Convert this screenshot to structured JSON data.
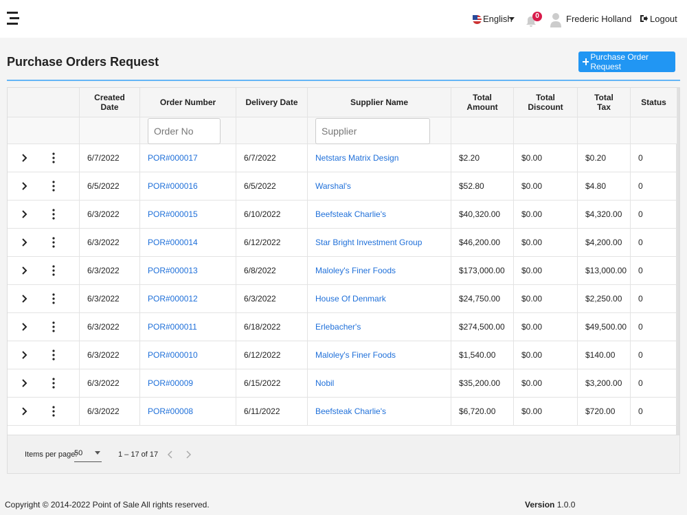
{
  "header": {
    "language": "English",
    "notification_count": 0,
    "user": "Frederic Holland",
    "logout": "Logout"
  },
  "page": {
    "title": "Purchase Orders Request",
    "button": "Purchase Order Request"
  },
  "table": {
    "columns": [
      "Created Date",
      "Order Number",
      "Delivery Date",
      "Supplier Name",
      "Total Amount",
      "Total Discount",
      "Total Tax",
      "Status"
    ],
    "filters": [
      "Order No",
      "Supplier"
    ],
    "rows": [
      [
        "6/7/2022",
        "POR#000017",
        "6/7/2022",
        "Netstars Matrix Design",
        "$2.20",
        "$0.00",
        "$0.20",
        0
      ],
      [
        "6/5/2022",
        "POR#000016",
        "6/5/2022",
        "Warshal's",
        "$52.80",
        "$0.00",
        "$4.80",
        0
      ],
      [
        "6/3/2022",
        "POR#000015",
        "6/10/2022",
        "Beefsteak Charlie's",
        "$40,320.00",
        "$0.00",
        "$4,320.00",
        0
      ],
      [
        "6/3/2022",
        "POR#000014",
        "6/12/2022",
        "Star Bright Investment Group",
        "$46,200.00",
        "$0.00",
        "$4,200.00",
        0
      ],
      [
        "6/3/2022",
        "POR#000013",
        "6/8/2022",
        "Maloley's Finer Foods",
        "$173,000.00",
        "$0.00",
        "$13,000.00",
        0
      ],
      [
        "6/3/2022",
        "POR#000012",
        "6/3/2022",
        "House Of Denmark",
        "$24,750.00",
        "$0.00",
        "$2,250.00",
        0
      ],
      [
        "6/3/2022",
        "POR#000011",
        "6/18/2022",
        "Erlebacher's",
        "$274,500.00",
        "$0.00",
        "$49,500.00",
        0
      ],
      [
        "6/3/2022",
        "POR#000010",
        "6/12/2022",
        "Maloley's Finer Foods",
        "$1,540.00",
        "$0.00",
        "$140.00",
        0
      ],
      [
        "6/3/2022",
        "POR#00009",
        "6/15/2022",
        "Nobil",
        "$35,200.00",
        "$0.00",
        "$3,200.00",
        0
      ],
      [
        "6/3/2022",
        "POR#00008",
        "6/11/2022",
        "Beefsteak Charlie's",
        "$6,720.00",
        "$0.00",
        "$720.00",
        0
      ]
    ]
  },
  "paginator": {
    "items_per_page": "Items per page:",
    "page_size": "50",
    "range": "1 – 17 of 17"
  },
  "footer": {
    "copyright": "Copyright © 2014-2022 Point of Sale All rights reserved.",
    "version_label": "Version",
    "version": "1.0.0"
  }
}
